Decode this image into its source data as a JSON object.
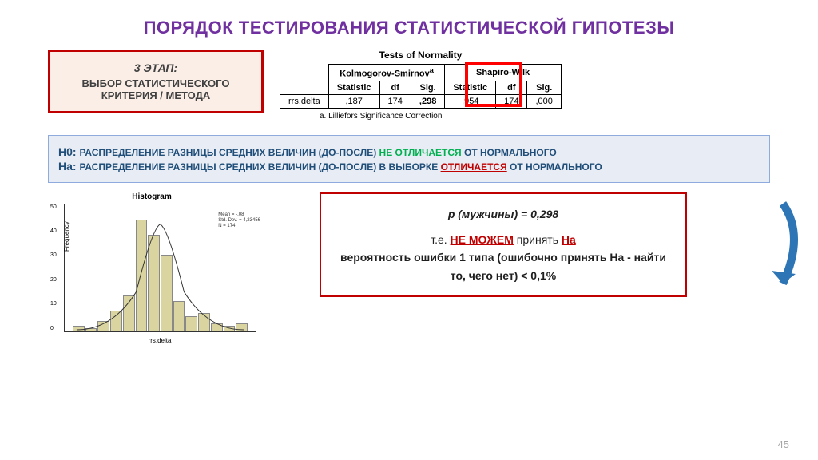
{
  "title": "ПОРЯДОК ТЕСТИРОВАНИЯ СТАТИСТИЧЕСКОЙ ГИПОТЕЗЫ",
  "title_color": "#7030a0",
  "step_box": {
    "num": "3 ЭТАП:",
    "text": "ВЫБОР СТАТИСТИЧЕСКОГО КРИТЕРИЯ / МЕТОДА",
    "border_color": "#c00000",
    "bg_color": "#fbeee6"
  },
  "normality_table": {
    "title": "Tests of Normality",
    "group1": "Kolmogorov-Smirnov",
    "group1_sup": "a",
    "group2": "Shapiro-Wilk",
    "cols": [
      "Statistic",
      "df",
      "Sig.",
      "Statistic",
      "df",
      "Sig."
    ],
    "row_label": "rrs.delta",
    "row_values": [
      ",187",
      "174",
      ",298",
      ",954",
      "174",
      ",000"
    ],
    "footnote_marker": "a.",
    "footnote_text": "Lilliefors Significance Correction",
    "highlight_col_index": 2,
    "highlight_color": "#ff0000"
  },
  "hypotheses": {
    "h0_label": "Н0:",
    "h0_text_a": "РАСПРЕДЕЛЕНИЕ РАЗНИЦЫ СРЕДНИХ ВЕЛИЧИН (ДО-ПОСЛЕ) ",
    "h0_key": "НЕ ОТЛИЧАЕТСЯ",
    "h0_text_b": " ОТ НОРМАЛЬНОГО",
    "ha_label": "На:",
    "ha_text_a": "РАСПРЕДЕЛЕНИЕ РАЗНИЦЫ СРЕДНИХ ВЕЛИЧИН (ДО-ПОСЛЕ) В ВЫБОРКЕ ",
    "ha_key": "ОТЛИЧАЕТСЯ",
    "ha_text_b": " ОТ НОРМАЛЬНОГО",
    "bg_color": "#e8ecf4",
    "border_color": "#8faadc",
    "label_color": "#1f4e79"
  },
  "histogram": {
    "title": "Histogram",
    "x_label": "rrs.delta",
    "y_label": "Frequency",
    "y_ticks": [
      "0",
      "10",
      "20",
      "30",
      "40",
      "50"
    ],
    "bin_heights": [
      2,
      1,
      4,
      8,
      14,
      44,
      38,
      30,
      12,
      6,
      7,
      3,
      2,
      3
    ],
    "y_max": 50,
    "bar_color": "#d9d4a0",
    "bar_border": "#888888",
    "axis_color": "#333333",
    "stats": [
      "Mean = -,08",
      "Std. Dev. = 4,23456",
      "N = 174"
    ]
  },
  "conclusion": {
    "pval": "p (мужчины) = 0,298",
    "line2a": "т.е. ",
    "line2b": "НЕ МОЖЕМ",
    "line2c": " принять ",
    "line2d": "На",
    "line3": "вероятность ошибки 1 типа (ошибочно принять На - найти то, чего нет) < 0,1%",
    "border_color": "#c00000"
  },
  "arrow_color": "#2e75b6",
  "page_number": "45"
}
